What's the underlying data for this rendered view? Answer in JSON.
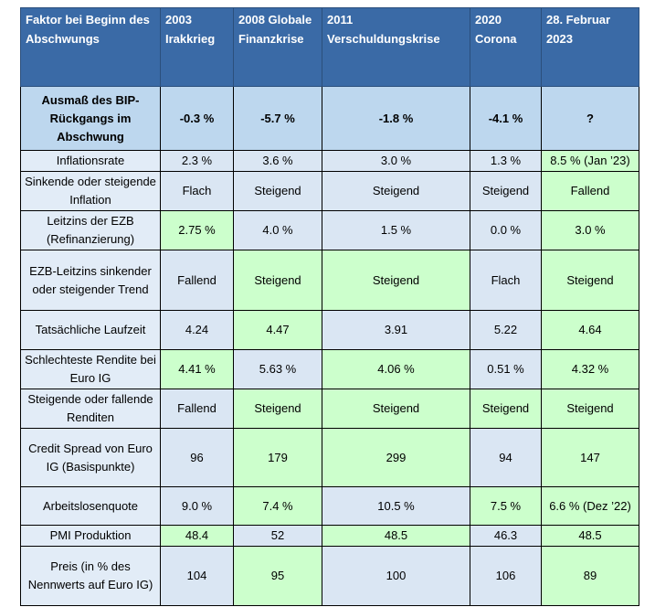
{
  "header": {
    "factor": "Faktor bei Beginn des Abschwungs",
    "periods": [
      "2003 Irakkrieg",
      "2008 Globale Finanzkrise",
      "2011 Verschuldungskrise",
      "2020 Corona",
      "28. Februar 2023"
    ]
  },
  "bip_row": {
    "label": "Ausmaß des BIP-Rückgangs im Abschwung",
    "values": [
      "-0.3 %",
      "-5.7 %",
      "-1.8 %",
      "-4.1 %",
      "?"
    ]
  },
  "rows": [
    {
      "label": "Inflationsrate",
      "values": [
        "2.3 %",
        "3.6 %",
        "3.0 %",
        "1.3 %",
        "8.5 % (Jan ’23)"
      ],
      "colors": [
        "b",
        "b",
        "b",
        "b",
        "g"
      ]
    },
    {
      "label": "Sinkende oder steigende Inflation",
      "values": [
        "Flach",
        "Steigend",
        "Steigend",
        "Steigend",
        "Fallend"
      ],
      "colors": [
        "b",
        "b",
        "b",
        "b",
        "g"
      ]
    },
    {
      "label": "Leitzins der EZB (Refinanzierung)",
      "values": [
        "2.75 %",
        "4.0 %",
        "1.5 %",
        "0.0 %",
        "3.0 %"
      ],
      "colors": [
        "g",
        "b",
        "b",
        "b",
        "g"
      ]
    },
    {
      "label": "EZB-Leitzins sinkender oder steigender Trend",
      "values": [
        "Fallend",
        "Steigend",
        "Steigend",
        "Flach",
        "Steigend"
      ],
      "colors": [
        "b",
        "g",
        "g",
        "b",
        "g"
      ]
    },
    {
      "label": "Tatsächliche Laufzeit",
      "values": [
        "4.24",
        "4.47",
        "3.91",
        "5.22",
        "4.64"
      ],
      "colors": [
        "b",
        "g",
        "b",
        "b",
        "g"
      ]
    },
    {
      "label": "Schlechteste Rendite bei Euro IG",
      "values": [
        "4.41 %",
        "5.63 %",
        "4.06 %",
        "0.51 %",
        "4.32 %"
      ],
      "colors": [
        "g",
        "b",
        "g",
        "b",
        "g"
      ]
    },
    {
      "label": "Steigende oder fallende Renditen",
      "values": [
        "Fallend",
        "Steigend",
        "Steigend",
        "Steigend",
        "Steigend"
      ],
      "colors": [
        "b",
        "g",
        "g",
        "g",
        "g"
      ]
    },
    {
      "label": "Credit Spread von Euro IG (Basispunkte)",
      "values": [
        "96",
        "179",
        "299",
        "94",
        "147"
      ],
      "colors": [
        "b",
        "g",
        "g",
        "b",
        "g"
      ]
    },
    {
      "label": "Arbeitslosenquote",
      "values": [
        "9.0 %",
        "7.4 %",
        "10.5 %",
        "7.5 %",
        "6.6 % (Dez ’22)"
      ],
      "colors": [
        "b",
        "g",
        "b",
        "g",
        "g"
      ]
    },
    {
      "label": "PMI Produktion",
      "values": [
        "48.4",
        "52",
        "48.5",
        "46.3",
        "48.5"
      ],
      "colors": [
        "g",
        "b",
        "g",
        "b",
        "g"
      ]
    },
    {
      "label": "Preis (in % des Nennwerts auf Euro IG)",
      "values": [
        "104",
        "95",
        "100",
        "106",
        "89"
      ],
      "colors": [
        "b",
        "g",
        "b",
        "b",
        "g"
      ]
    }
  ]
}
